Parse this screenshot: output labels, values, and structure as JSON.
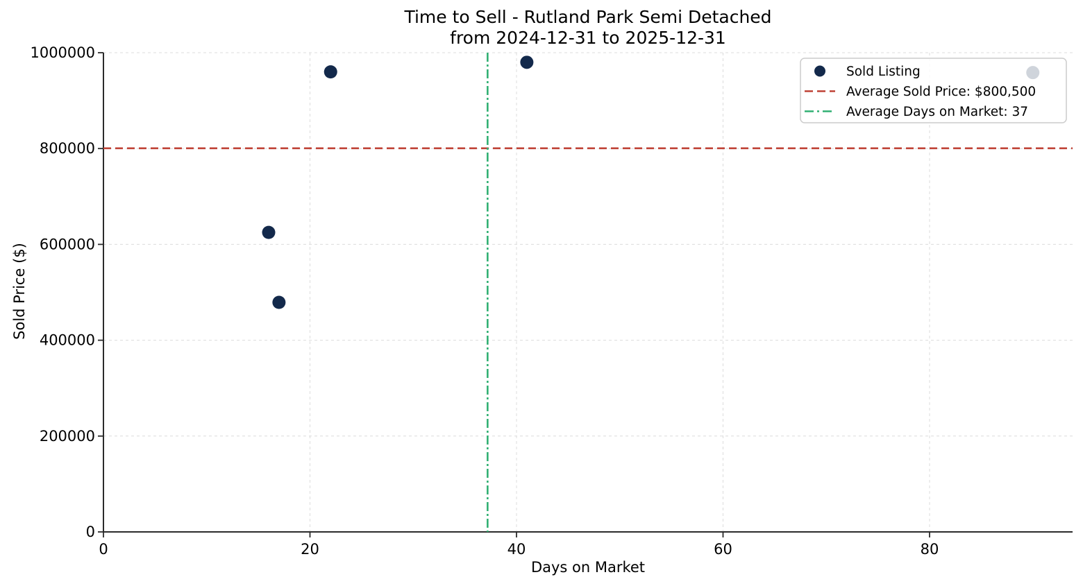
{
  "chart_data": {
    "type": "scatter",
    "title": "Time to Sell - Rutland Park Semi Detached",
    "subtitle": "from 2024-12-31 to 2025-12-31",
    "xlabel": "Days on Market",
    "ylabel": "Sold Price ($)",
    "xlim": [
      0,
      93.85
    ],
    "ylim": [
      0,
      1000000
    ],
    "x_ticks": [
      0,
      20,
      40,
      60,
      80
    ],
    "y_ticks": [
      0,
      200000,
      400000,
      600000,
      800000,
      1000000
    ],
    "grid": true,
    "legend_position": "upper right",
    "series": [
      {
        "name": "Sold Listing",
        "points": [
          [
            16,
            625000
          ],
          [
            17,
            479000
          ],
          [
            22,
            960000
          ],
          [
            41,
            980000
          ],
          [
            90,
            958500
          ]
        ]
      }
    ],
    "avg_sold_price": 800500,
    "avg_days_on_market": 37.2,
    "legend": {
      "entries": [
        {
          "label": "Sold Listing",
          "marker": "dot",
          "color": "#13294b"
        },
        {
          "label": "Average Sold Price: $800,500",
          "marker": "dashed",
          "color": "#bf4236"
        },
        {
          "label": "Average Days on Market: 37",
          "marker": "dashdot",
          "color": "#31b073"
        }
      ]
    },
    "colors": {
      "scatter": "#13294b",
      "avg_price_line": "#bf4236",
      "avg_days_line": "#31b073",
      "grid": "#dcdcdc",
      "spine": "#2a2a2a",
      "text": "#000000",
      "legend_border": "#cccccc",
      "background": "#ffffff"
    }
  }
}
